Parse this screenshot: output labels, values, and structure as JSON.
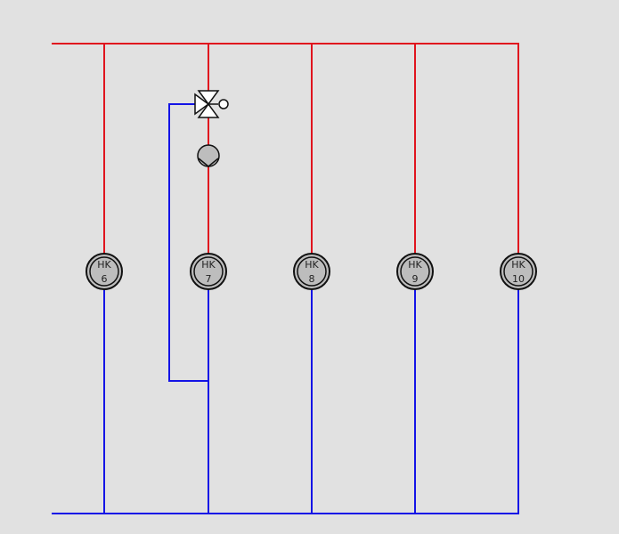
{
  "colors": {
    "background": "#e1e1e1",
    "supply": "#e0141e",
    "return": "#1414e6",
    "circuit_fill": "#bdbdbd",
    "circuit_stroke": "#111111"
  },
  "circuits": [
    {
      "prefix": "HK",
      "number": "6"
    },
    {
      "prefix": "HK",
      "number": "7"
    },
    {
      "prefix": "HK",
      "number": "8"
    },
    {
      "prefix": "HK",
      "number": "9"
    },
    {
      "prefix": "HK",
      "number": "10"
    }
  ],
  "components": {
    "mixing_valve": "three-way-mixing-valve-icon",
    "pump": "circulation-pump-icon",
    "bypass": "bypass-line"
  }
}
